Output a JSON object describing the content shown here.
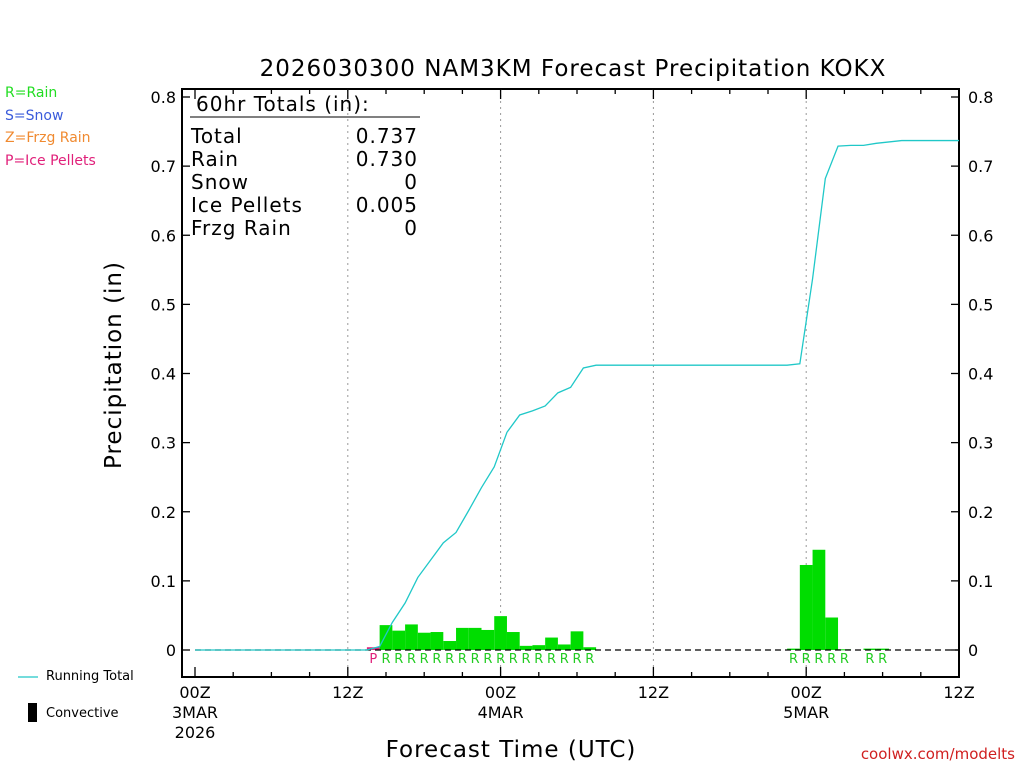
{
  "chart_data": {
    "type": "bar+line",
    "title": "2026030300 NAM3KM Forecast Precipitation KOKX",
    "xlabel": "Forecast Time (UTC)",
    "ylabel": "Precipitation (in)",
    "ylim": [
      0,
      0.8
    ],
    "xlim_hours": [
      0,
      60
    ],
    "y_ticks": [
      "0",
      "0.1",
      "0.2",
      "0.3",
      "0.4",
      "0.5",
      "0.6",
      "0.7",
      "0.8"
    ],
    "x_ticks": [
      {
        "hour": 0,
        "label": "00Z",
        "sub1": "3MAR",
        "sub2": "2026"
      },
      {
        "hour": 12,
        "label": "12Z",
        "sub1": "",
        "sub2": ""
      },
      {
        "hour": 24,
        "label": "00Z",
        "sub1": "4MAR",
        "sub2": ""
      },
      {
        "hour": 36,
        "label": "12Z",
        "sub1": "",
        "sub2": ""
      },
      {
        "hour": 48,
        "label": "00Z",
        "sub1": "5MAR",
        "sub2": ""
      },
      {
        "hour": 60,
        "label": "12Z",
        "sub1": "",
        "sub2": ""
      }
    ],
    "totals_box": {
      "header": "60hr Totals (in):",
      "rows": [
        {
          "label": "Total",
          "value": "0.737"
        },
        {
          "label": "Rain",
          "value": "0.730"
        },
        {
          "label": "Snow",
          "value": "0"
        },
        {
          "label": "Ice Pellets",
          "value": "0.005"
        },
        {
          "label": "Frzg Rain",
          "value": "0"
        }
      ]
    },
    "hourly_bars": [
      {
        "hour": 14,
        "value": 0.004,
        "type": "P"
      },
      {
        "hour": 15,
        "value": 0.036,
        "type": "R"
      },
      {
        "hour": 16,
        "value": 0.028,
        "type": "R"
      },
      {
        "hour": 17,
        "value": 0.037,
        "type": "R"
      },
      {
        "hour": 18,
        "value": 0.025,
        "type": "R"
      },
      {
        "hour": 19,
        "value": 0.026,
        "type": "R"
      },
      {
        "hour": 20,
        "value": 0.013,
        "type": "R"
      },
      {
        "hour": 21,
        "value": 0.032,
        "type": "R"
      },
      {
        "hour": 22,
        "value": 0.032,
        "type": "R"
      },
      {
        "hour": 23,
        "value": 0.029,
        "type": "R"
      },
      {
        "hour": 24,
        "value": 0.049,
        "type": "R"
      },
      {
        "hour": 25,
        "value": 0.026,
        "type": "R"
      },
      {
        "hour": 26,
        "value": 0.006,
        "type": "R"
      },
      {
        "hour": 27,
        "value": 0.007,
        "type": "R"
      },
      {
        "hour": 28,
        "value": 0.018,
        "type": "R"
      },
      {
        "hour": 29,
        "value": 0.008,
        "type": "R"
      },
      {
        "hour": 30,
        "value": 0.027,
        "type": "R"
      },
      {
        "hour": 31,
        "value": 0.004,
        "type": "R"
      },
      {
        "hour": 47,
        "value": 0.002,
        "type": "R"
      },
      {
        "hour": 48,
        "value": 0.123,
        "type": "R"
      },
      {
        "hour": 49,
        "value": 0.145,
        "type": "R"
      },
      {
        "hour": 50,
        "value": 0.047,
        "type": "R"
      },
      {
        "hour": 51,
        "value": 0.001,
        "type": "R"
      },
      {
        "hour": 53,
        "value": 0.002,
        "type": "R"
      },
      {
        "hour": 54,
        "value": 0.002,
        "type": "R"
      }
    ],
    "running_total": {
      "name": "Running Total",
      "x": [
        0,
        13.5,
        14.5,
        15.5,
        16.5,
        17.5,
        18.5,
        19.5,
        20.5,
        21.5,
        22.5,
        23.5,
        24.5,
        25.5,
        26.5,
        27.5,
        28.5,
        29.5,
        30.5,
        31.5,
        46.5,
        47.5,
        48.5,
        49.5,
        50.5,
        51.5,
        52.5,
        53.5,
        54.5,
        55.5,
        60
      ],
      "y": [
        0,
        0,
        0.005,
        0.04,
        0.068,
        0.105,
        0.13,
        0.155,
        0.17,
        0.202,
        0.235,
        0.265,
        0.315,
        0.34,
        0.346,
        0.353,
        0.372,
        0.38,
        0.408,
        0.412,
        0.412,
        0.414,
        0.537,
        0.682,
        0.729,
        0.73,
        0.73,
        0.733,
        0.735,
        0.737,
        0.737
      ]
    }
  },
  "ptype_legend": [
    {
      "text": "R=Rain",
      "color": "#22dd22"
    },
    {
      "text": "S=Snow",
      "color": "#3a5bdb"
    },
    {
      "text": "Z=Frzg Rain",
      "color": "#f08a30"
    },
    {
      "text": "P=Ice Pellets",
      "color": "#e0207a"
    }
  ],
  "colors": {
    "rain": "#00dd00",
    "ice_pellets": "#e0207a",
    "running_total": "#20c8c8",
    "credit": "#d02020"
  },
  "series_legend": {
    "running_total": "Running Total",
    "convective": "Convective"
  },
  "credit": "coolwx.com/modelts"
}
